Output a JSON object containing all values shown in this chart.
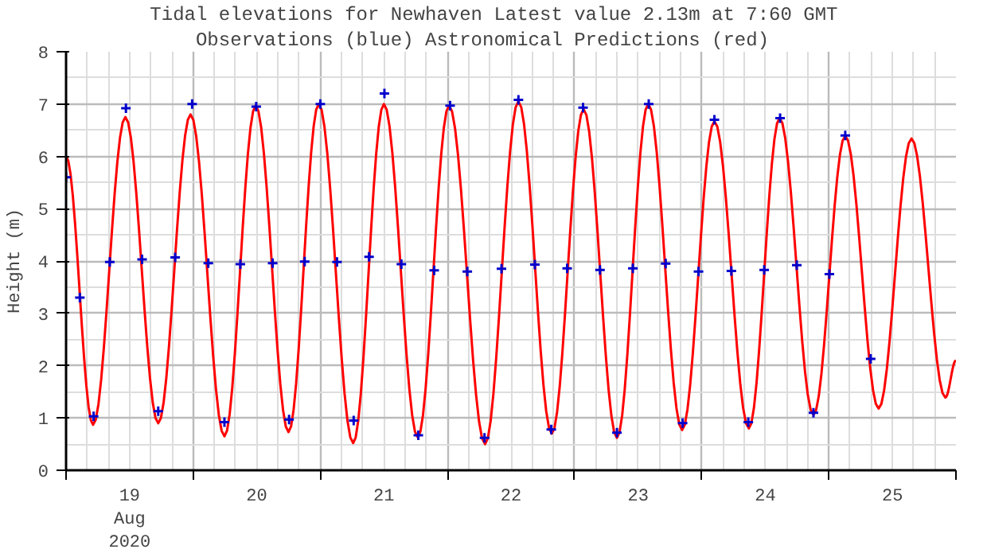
{
  "chart_data": {
    "type": "line",
    "title": "Tidal elevations for Newhaven    Latest value 2.13m at 7:60 GMT",
    "subtitle": "Observations (blue)      Astronomical Predictions (red)",
    "ylabel": "Height (m)",
    "xlim": [
      "2020-08-19T00:00",
      "2020-08-26T00:00"
    ],
    "ylim": [
      0,
      8
    ],
    "yticks": [
      0,
      1,
      2,
      3,
      4,
      5,
      6,
      7,
      8
    ],
    "xticks": [
      {
        "value": "2020-08-19T00:00",
        "label": null
      },
      {
        "value": "2020-08-19T12:00",
        "label": "19\nAug\n2020"
      },
      {
        "value": "2020-08-20T00:00",
        "label": null
      },
      {
        "value": "2020-08-20T12:00",
        "label": "20"
      },
      {
        "value": "2020-08-21T00:00",
        "label": null
      },
      {
        "value": "2020-08-21T12:00",
        "label": "21"
      },
      {
        "value": "2020-08-22T00:00",
        "label": null
      },
      {
        "value": "2020-08-22T12:00",
        "label": "22"
      },
      {
        "value": "2020-08-23T00:00",
        "label": null
      },
      {
        "value": "2020-08-23T12:00",
        "label": "23"
      },
      {
        "value": "2020-08-24T00:00",
        "label": null
      },
      {
        "value": "2020-08-24T12:00",
        "label": "24"
      },
      {
        "value": "2020-08-25T00:00",
        "label": null
      },
      {
        "value": "2020-08-25T12:00",
        "label": "25"
      },
      {
        "value": "2020-08-26T00:00",
        "label": null
      }
    ],
    "grid": true,
    "series": [
      {
        "color": "#ff0000",
        "marker": "none",
        "line_style": "solid",
        "x": [
          "2020-08-19T00:00",
          "2020-08-19T05:06",
          "2020-08-19T11:12",
          "2020-08-19T17:24",
          "2020-08-19T23:30",
          "2020-08-20T05:54",
          "2020-08-20T11:48",
          "2020-08-20T18:00",
          "2020-08-20T23:42",
          "2020-08-21T06:12",
          "2020-08-21T12:00",
          "2020-08-21T18:24",
          "2020-08-22T00:18",
          "2020-08-22T07:06",
          "2020-08-22T13:24",
          "2020-08-22T19:42",
          "2020-08-23T01:42",
          "2020-08-23T08:00",
          "2020-08-23T13:54",
          "2020-08-23T20:18",
          "2020-08-24T02:24",
          "2020-08-24T08:54",
          "2020-08-24T14:42",
          "2020-08-24T21:06",
          "2020-08-25T03:06",
          "2020-08-25T09:24",
          "2020-08-25T15:36",
          "2020-08-25T22:00",
          "2020-08-26T00:00"
        ],
        "values": [
          6.0,
          0.87,
          6.75,
          0.9,
          6.8,
          0.65,
          6.97,
          0.73,
          7.0,
          0.52,
          7.0,
          0.63,
          6.97,
          0.5,
          7.05,
          0.7,
          6.9,
          0.62,
          7.0,
          0.77,
          6.67,
          0.8,
          6.73,
          1.06,
          6.39,
          1.18,
          6.34,
          1.39,
          2.1
        ]
      },
      {
        "type": "scatter",
        "color": "#0000cc",
        "marker": "cross",
        "x": [
          "2020-08-19T00:00",
          "2020-08-19T02:36",
          "2020-08-19T05:12",
          "2020-08-19T08:15",
          "2020-08-19T11:18",
          "2020-08-19T14:21",
          "2020-08-19T17:24",
          "2020-08-19T20:36",
          "2020-08-19T23:48",
          "2020-08-20T02:51",
          "2020-08-20T05:54",
          "2020-08-20T08:54",
          "2020-08-20T11:54",
          "2020-08-20T15:00",
          "2020-08-20T18:06",
          "2020-08-20T21:03",
          "2020-08-21T00:00",
          "2020-08-21T03:09",
          "2020-08-21T06:18",
          "2020-08-21T09:12",
          "2020-08-21T12:06",
          "2020-08-21T15:18",
          "2020-08-21T18:30",
          "2020-08-21T21:30",
          "2020-08-22T00:30",
          "2020-08-22T03:45",
          "2020-08-22T07:00",
          "2020-08-22T10:12",
          "2020-08-22T13:24",
          "2020-08-22T16:30",
          "2020-08-22T19:36",
          "2020-08-22T22:36",
          "2020-08-23T01:36",
          "2020-08-23T04:48",
          "2020-08-23T08:00",
          "2020-08-23T11:00",
          "2020-08-23T14:00",
          "2020-08-23T17:12",
          "2020-08-23T20:24",
          "2020-08-23T23:24",
          "2020-08-24T02:24",
          "2020-08-24T05:36",
          "2020-08-24T08:48",
          "2020-08-24T11:48",
          "2020-08-24T14:48",
          "2020-08-24T17:57",
          "2020-08-24T21:06",
          "2020-08-25T00:06",
          "2020-08-25T03:06",
          "2020-08-25T07:54"
        ],
        "values": [
          5.6,
          3.3,
          1.03,
          3.98,
          6.92,
          4.03,
          1.13,
          4.07,
          7.0,
          3.96,
          0.92,
          3.94,
          6.95,
          3.96,
          0.97,
          3.99,
          7.0,
          3.98,
          0.95,
          4.08,
          7.2,
          3.94,
          0.67,
          3.82,
          6.97,
          3.8,
          0.62,
          3.85,
          7.08,
          3.93,
          0.78,
          3.86,
          6.93,
          3.83,
          0.72,
          3.86,
          7.0,
          3.95,
          0.9,
          3.8,
          6.7,
          3.81,
          0.92,
          3.83,
          6.73,
          3.92,
          1.1,
          3.75,
          6.4,
          2.13
        ]
      }
    ]
  }
}
